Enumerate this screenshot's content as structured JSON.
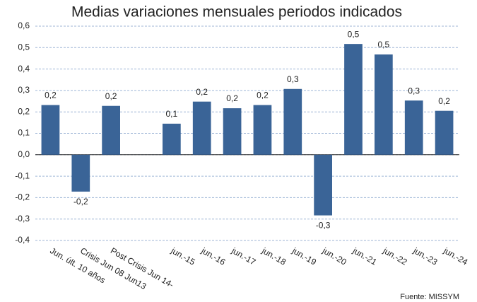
{
  "chart_data": {
    "type": "bar",
    "title": "Medias variaciones mensuales periodos indicados",
    "categories": [
      "Jun. últ. 10 años",
      "Crisis Jun 08 Jun13",
      "Post Crisis Jun 14-",
      null,
      "jun.-15",
      "jun.-16",
      "jun.-17",
      "jun.-18",
      "jun.-19",
      "jun.-20",
      "jun.-21",
      "jun.-22",
      "jun.-23",
      "jun.-24"
    ],
    "values": [
      0.232,
      -0.172,
      0.228,
      null,
      0.145,
      0.248,
      0.217,
      0.232,
      0.307,
      -0.283,
      0.517,
      0.468,
      0.253,
      0.205
    ],
    "value_labels": [
      "0,2",
      "-0,2",
      "0,2",
      null,
      "0,1",
      "0,2",
      "0,2",
      "0,2",
      "0,3",
      "-0,3",
      "0,5",
      "0,5",
      "0,3",
      "0,2"
    ],
    "color": "#3a6497",
    "ylim": [
      -0.4,
      0.6
    ],
    "yticks": [
      {
        "value": -0.4,
        "label": "-0,4"
      },
      {
        "value": -0.3,
        "label": "-0,3"
      },
      {
        "value": -0.2,
        "label": "-0,2"
      },
      {
        "value": -0.1,
        "label": "-0,1"
      },
      {
        "value": 0,
        "label": "0,0"
      },
      {
        "value": 0.1,
        "label": "0,1"
      },
      {
        "value": 0.2,
        "label": "0,2"
      },
      {
        "value": 0.3,
        "label": "0,3"
      },
      {
        "value": 0.4,
        "label": "0,4"
      },
      {
        "value": 0.5,
        "label": "0,5"
      },
      {
        "value": 0.6,
        "label": "0,6"
      }
    ],
    "grid": true,
    "source": "Fuente: MISSYM"
  }
}
